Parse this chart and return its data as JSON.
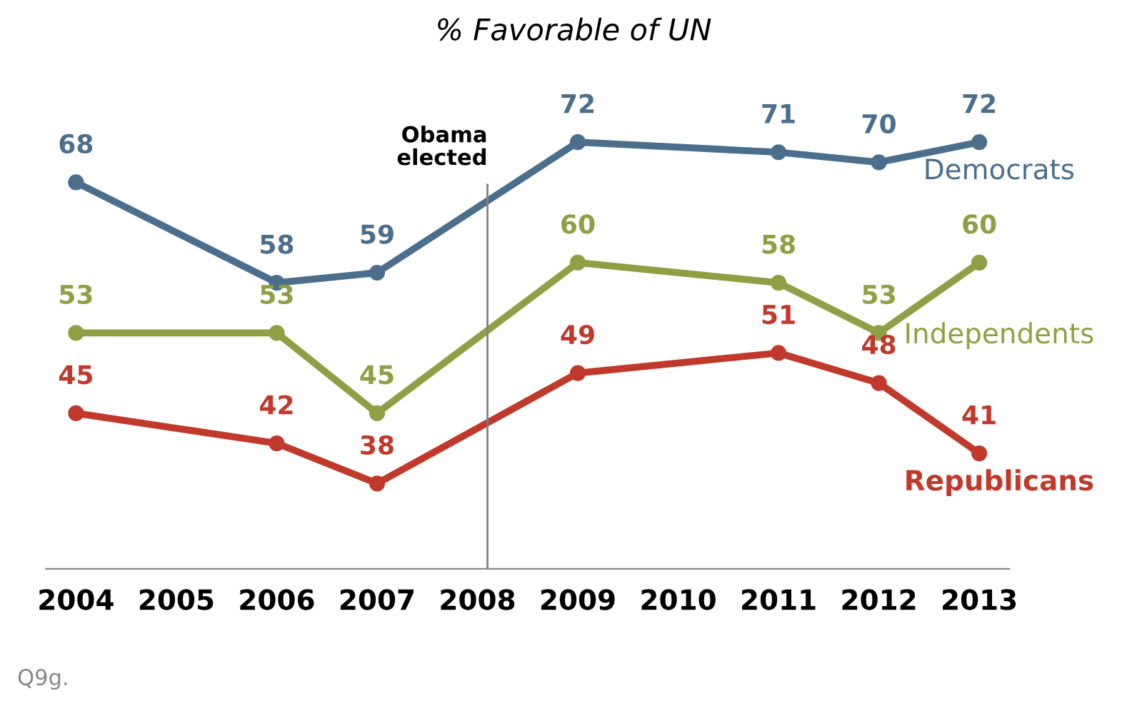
{
  "chart_data": {
    "type": "line",
    "title": "% Favorable of UN",
    "x": [
      2004,
      2006,
      2007,
      2009,
      2011,
      2012,
      2013
    ],
    "series": [
      {
        "name": "Democrats",
        "color": "#4a6e8c",
        "values": [
          68,
          58,
          59,
          72,
          71,
          70,
          72
        ]
      },
      {
        "name": "Independents",
        "color": "#8fa044",
        "values": [
          53,
          53,
          45,
          60,
          58,
          53,
          60
        ]
      },
      {
        "name": "Republicans",
        "color": "#c0392b",
        "values": [
          45,
          42,
          38,
          49,
          51,
          48,
          41
        ]
      }
    ],
    "xlim": [
      2003.7,
      2013.3
    ],
    "xticks": [
      2004,
      2005,
      2006,
      2007,
      2008,
      2009,
      2010,
      2011,
      2012,
      2013
    ],
    "tick_labels": "x",
    "data_labels": true,
    "marker": "circle",
    "line_style": "solid",
    "grid": false,
    "legend": false,
    "ref_lines": [
      {
        "axis": "x",
        "value": 2008.1,
        "label": "Obama\nelected",
        "color": "#808080"
      }
    ],
    "annotations": [
      "Q9g."
    ]
  }
}
